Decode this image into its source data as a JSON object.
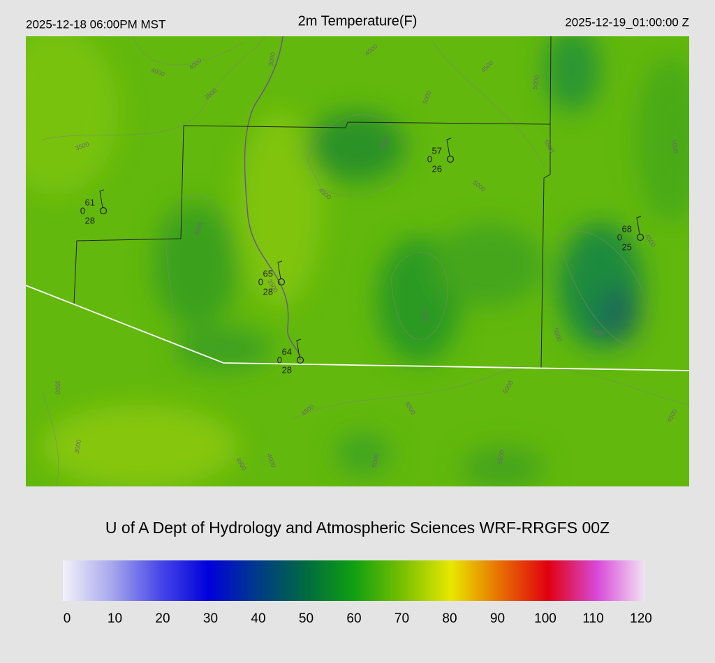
{
  "header": {
    "left": "2025-12-18 06:00PM MST",
    "title": "2m Temperature(F)",
    "right": "2025-12-19_01:00:00 Z"
  },
  "stations": [
    {
      "temp": 61,
      "mid": 0,
      "dew": 28
    },
    {
      "temp": 57,
      "mid": 0,
      "dew": 26
    },
    {
      "temp": 68,
      "mid": 0,
      "dew": 25
    },
    {
      "temp": 65,
      "mid": 0,
      "dew": 28
    },
    {
      "temp": 64,
      "mid": 0,
      "dew": 28
    }
  ],
  "contour_labels": [
    "4000",
    "4000",
    "3000",
    "3500",
    "3500",
    "4000",
    "4500",
    "5000",
    "5000",
    "4500",
    "4500",
    "5000",
    "5000",
    "5500",
    "5000",
    "4500",
    "5000",
    "5000",
    "5000",
    "5000",
    "4500",
    "4500",
    "5000",
    "5500",
    "4500",
    "3500",
    "3000",
    "4000",
    "4500",
    "3500"
  ],
  "footer": {
    "title": "U of A Dept of Hydrology and Atmospheric Sciences WRF-RRGFS 00Z"
  },
  "colorbar": {
    "range": [
      0,
      120
    ],
    "ticks": [
      0,
      10,
      20,
      30,
      40,
      50,
      60,
      70,
      80,
      90,
      100,
      110,
      120
    ],
    "colors": [
      "#f2f2fa",
      "#a8a8ec",
      "#4848e8",
      "#0000dc",
      "#003a8a",
      "#006a40",
      "#10a010",
      "#78c000",
      "#e8e800",
      "#e87000",
      "#e00010",
      "#d848d8",
      "#f2e4f2"
    ]
  }
}
